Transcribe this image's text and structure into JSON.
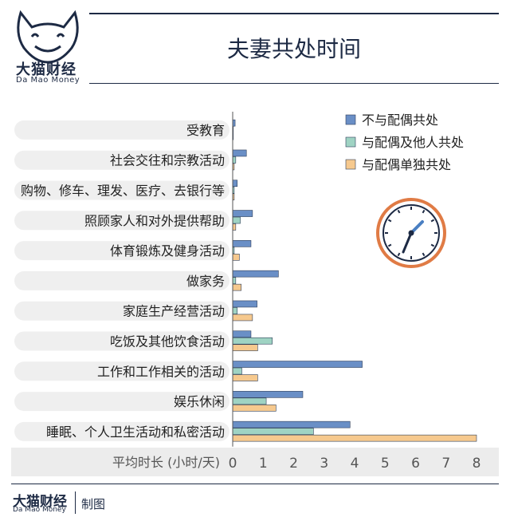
{
  "brand": {
    "name_cn": "大猫财经",
    "name_en": "Da Mao Money",
    "credit": "制图"
  },
  "chart_data": {
    "type": "bar",
    "orientation": "horizontal",
    "title": "夫妻共处时间",
    "xlabel": "平均时长 (小时/天)",
    "xlim": [
      0,
      8
    ],
    "xticks": [
      0,
      1,
      2,
      3,
      4,
      5,
      6,
      7,
      8
    ],
    "categories": [
      "受教育",
      "社会交往和宗教活动",
      "购物、修车、理发、医疗、去银行等",
      "照顾家人和对外提供帮助",
      "体育锻炼及健身活动",
      "做家务",
      "家庭生产经营活动",
      "吃饭及其他饮食活动",
      "工作和工作相关的活动",
      "娱乐休闲",
      "睡眠、个人卫生活动和私密活动"
    ],
    "series": [
      {
        "name": "不与配偶共处",
        "color": "#6a8fc6",
        "values": [
          0.08,
          0.45,
          0.15,
          0.65,
          0.6,
          1.5,
          0.8,
          0.6,
          4.25,
          2.3,
          3.85
        ]
      },
      {
        "name": "与配偶及他人共处",
        "color": "#9fd3c3",
        "values": [
          0.02,
          0.1,
          0.05,
          0.25,
          0.05,
          0.1,
          0.15,
          1.3,
          0.3,
          1.1,
          2.65
        ]
      },
      {
        "name": "与配偶单独共处",
        "color": "#f6c98e",
        "values": [
          0.02,
          0.05,
          0.05,
          0.1,
          0.22,
          0.28,
          0.65,
          0.82,
          0.82,
          1.42,
          8.0
        ]
      }
    ],
    "legend_position": "top-right",
    "grid": false
  }
}
